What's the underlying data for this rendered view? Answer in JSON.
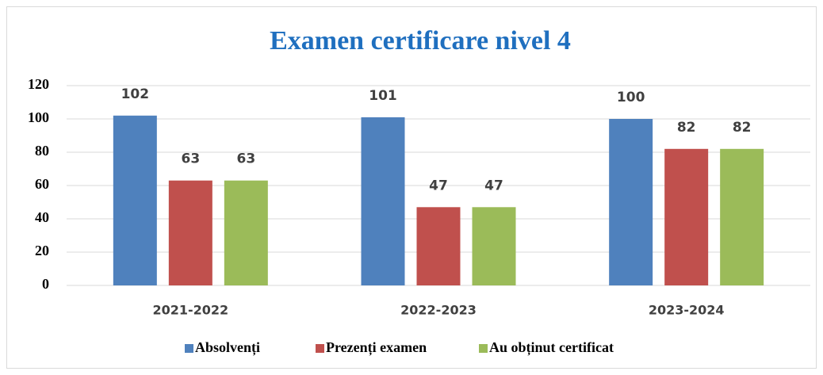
{
  "chart_data": {
    "type": "bar",
    "title": "Examen certificare nivel 4",
    "categories": [
      "2021-2022",
      "2022-2023",
      "2023-2024"
    ],
    "series": [
      {
        "name": "Absolvenți",
        "color": "#4f81bd",
        "values": [
          102,
          101,
          100
        ]
      },
      {
        "name": "Prezenți examen",
        "color": "#c0504d",
        "values": [
          63,
          47,
          82
        ]
      },
      {
        "name": "Au obținut certificat",
        "color": "#9bbb59",
        "values": [
          63,
          47,
          82
        ]
      }
    ],
    "ylim": [
      0,
      120
    ],
    "yticks": [
      0,
      20,
      40,
      60,
      80,
      100,
      120
    ],
    "grid": true,
    "legend": "bottom"
  }
}
